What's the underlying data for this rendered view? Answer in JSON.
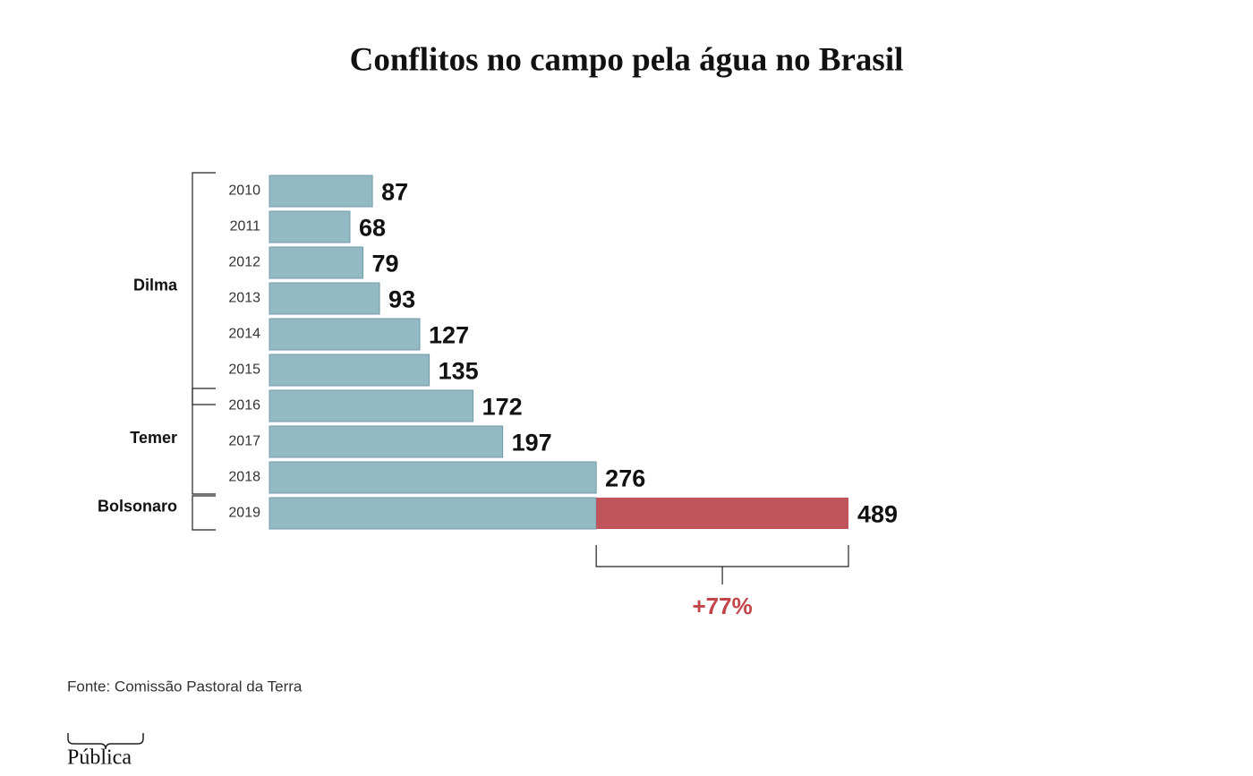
{
  "chart_data": {
    "type": "bar",
    "orientation": "horizontal",
    "title": "Conflitos no campo pela água no Brasil",
    "categories": [
      "2010",
      "2011",
      "2012",
      "2013",
      "2014",
      "2015",
      "2016",
      "2017",
      "2018",
      "2019"
    ],
    "values": [
      87,
      68,
      79,
      93,
      127,
      135,
      172,
      197,
      276,
      489
    ],
    "color": "#93b9c4",
    "highlight_color": "#bf545a",
    "groups": [
      {
        "name": "Dilma",
        "categories": [
          "2010",
          "2011",
          "2012",
          "2013",
          "2014",
          "2015"
        ]
      },
      {
        "name": "Temer",
        "categories": [
          "2016",
          "2017",
          "2018"
        ]
      },
      {
        "name": "Bolsonaro",
        "categories": [
          "2019"
        ]
      }
    ],
    "annotation": "+77%",
    "source": "Fonte: Comissão Pastoral da Terra",
    "logo": "Pública"
  }
}
